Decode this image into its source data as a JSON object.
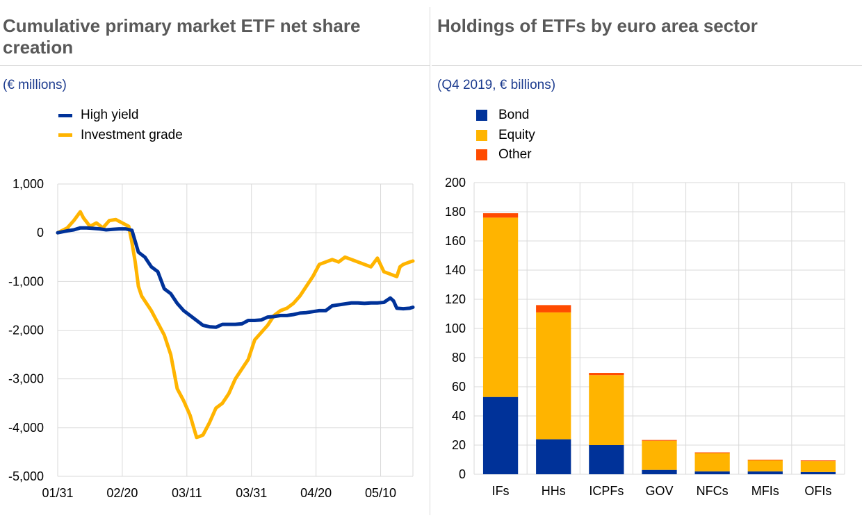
{
  "left": {
    "title": "Cumulative primary market ETF net share creation",
    "subtitle": "(€ millions)"
  },
  "right": {
    "title": "Holdings of ETFs by euro area sector",
    "subtitle": "(Q4 2019, € billions)"
  },
  "chart_data": [
    {
      "type": "line",
      "ylim": [
        -5000,
        1000
      ],
      "yticks": [
        1000,
        0,
        -1000,
        -2000,
        -3000,
        -4000,
        -5000
      ],
      "ytick_labels": [
        "1,000",
        "0",
        "-1,000",
        "-2,000",
        "-3,000",
        "-4,000",
        "-5,000"
      ],
      "xlim": [
        0,
        110
      ],
      "x_ticks": [
        0,
        20,
        40,
        60,
        80,
        100
      ],
      "x_tick_labels": [
        "01/31",
        "02/20",
        "03/11",
        "03/31",
        "04/20",
        "05/10"
      ],
      "grid": true,
      "legend_position": "top-left",
      "series": [
        {
          "name": "High yield",
          "color": "#003299",
          "x": [
            0,
            3,
            5,
            7,
            9,
            13,
            15,
            17,
            19,
            21,
            23,
            25,
            27,
            29,
            31,
            33,
            35,
            37,
            39,
            41,
            43,
            45,
            47,
            49,
            51,
            53,
            55,
            57,
            59,
            61,
            63,
            65,
            67,
            69,
            71,
            73,
            75,
            77,
            79,
            81,
            83,
            85,
            87,
            89,
            91,
            93,
            95,
            97,
            99,
            101,
            103,
            104,
            105,
            107,
            109,
            110
          ],
          "values": [
            0,
            40,
            60,
            100,
            100,
            80,
            60,
            70,
            80,
            80,
            50,
            -400,
            -500,
            -700,
            -800,
            -1150,
            -1250,
            -1450,
            -1600,
            -1700,
            -1800,
            -1900,
            -1930,
            -1940,
            -1880,
            -1880,
            -1880,
            -1870,
            -1800,
            -1800,
            -1790,
            -1730,
            -1720,
            -1700,
            -1700,
            -1680,
            -1650,
            -1640,
            -1620,
            -1600,
            -1600,
            -1500,
            -1480,
            -1460,
            -1440,
            -1440,
            -1450,
            -1440,
            -1440,
            -1430,
            -1340,
            -1400,
            -1550,
            -1560,
            -1550,
            -1530
          ]
        },
        {
          "name": "Investment grade",
          "color": "#ffb400",
          "x": [
            0,
            3,
            5,
            7,
            8,
            10,
            12,
            14,
            16,
            18,
            20,
            22,
            23,
            24,
            25,
            26,
            27,
            29,
            31,
            33,
            35,
            37,
            39,
            41,
            43,
            44,
            45,
            47,
            49,
            51,
            53,
            55,
            57,
            59,
            61,
            63,
            65,
            67,
            69,
            71,
            73,
            75,
            77,
            79,
            81,
            83,
            85,
            87,
            89,
            91,
            93,
            95,
            97,
            99,
            101,
            103,
            105,
            106,
            107,
            109,
            110
          ],
          "values": [
            0,
            100,
            250,
            430,
            300,
            130,
            200,
            100,
            250,
            270,
            200,
            130,
            -200,
            -600,
            -1100,
            -1300,
            -1400,
            -1600,
            -1850,
            -2100,
            -2500,
            -3200,
            -3450,
            -3750,
            -4200,
            -4180,
            -4150,
            -3900,
            -3600,
            -3500,
            -3300,
            -3000,
            -2800,
            -2600,
            -2200,
            -2050,
            -1900,
            -1700,
            -1600,
            -1550,
            -1450,
            -1300,
            -1100,
            -900,
            -650,
            -600,
            -550,
            -600,
            -500,
            -550,
            -600,
            -650,
            -700,
            -520,
            -800,
            -850,
            -900,
            -700,
            -650,
            -600,
            -580
          ]
        }
      ]
    },
    {
      "type": "bar",
      "stacked": true,
      "categories": [
        "IFs",
        "HHs",
        "ICPFs",
        "GOV",
        "NFCs",
        "MFIs",
        "OFIs"
      ],
      "ylim": [
        0,
        200
      ],
      "yticks": [
        0,
        20,
        40,
        60,
        80,
        100,
        120,
        140,
        160,
        180,
        200
      ],
      "grid": true,
      "legend_position": "top-left",
      "series": [
        {
          "name": "Bond",
          "color": "#003299",
          "values": [
            53,
            24,
            20,
            3,
            2,
            2,
            1.5
          ]
        },
        {
          "name": "Equity",
          "color": "#ffb400",
          "values": [
            123,
            87,
            48,
            20,
            12.5,
            7.5,
            7.5
          ]
        },
        {
          "name": "Other",
          "color": "#ff4b00",
          "values": [
            3,
            5,
            1.5,
            0.5,
            0.5,
            0.5,
            0.5
          ]
        }
      ]
    }
  ]
}
